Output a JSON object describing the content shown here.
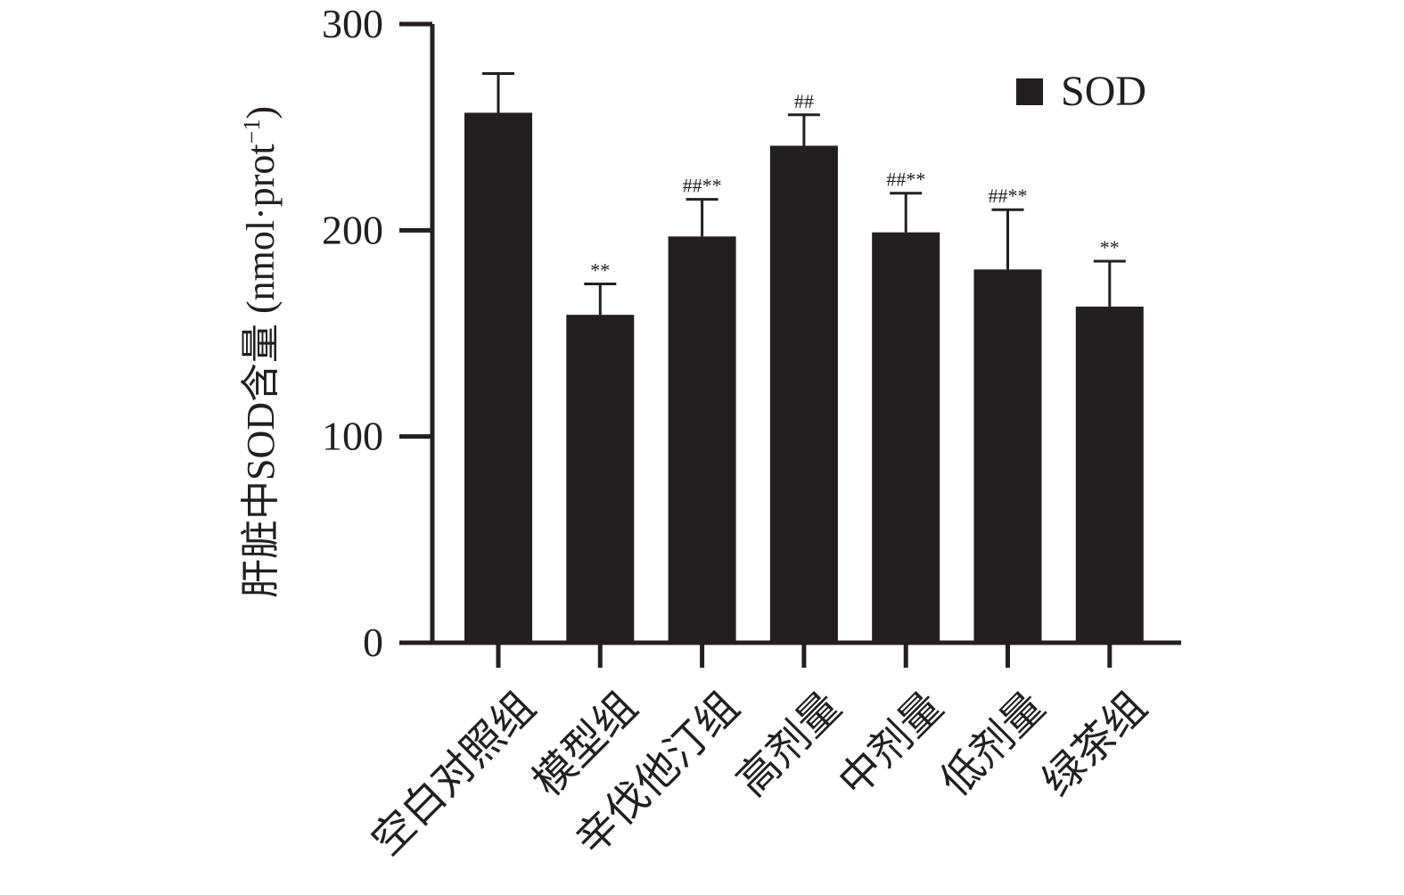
{
  "chart_data": {
    "type": "bar",
    "ylabel": "肝脏中SOD含量",
    "ylabel_unit_prefix": "(nmol·prot",
    "ylabel_unit_sup": "−1",
    "ylabel_unit_suffix": ")",
    "ylim": [
      0,
      300
    ],
    "yticks": [
      0,
      100,
      200,
      300
    ],
    "categories": [
      "空白对照组",
      "模型组",
      "辛伐他汀组",
      "高剂量",
      "中剂量",
      "低剂量",
      "绿茶组"
    ],
    "series": [
      {
        "name": "SOD",
        "values": [
          257,
          159,
          197,
          241,
          199,
          181,
          163
        ],
        "errors": [
          19,
          15,
          18,
          15,
          19,
          29,
          22
        ],
        "annotations": [
          "",
          "**",
          "##**",
          "##",
          "##**",
          "##**",
          "**"
        ]
      }
    ],
    "legend": {
      "position": "top-right"
    },
    "grid": false,
    "bar_color": "#231f20"
  }
}
